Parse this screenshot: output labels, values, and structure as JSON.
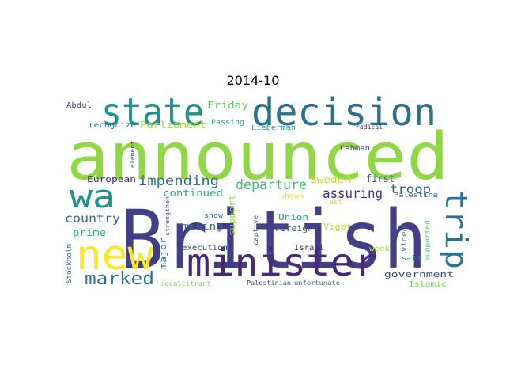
{
  "title": "2014-10",
  "colors": {
    "background": "#ffffff",
    "title": "#000000"
  },
  "words": [
    {
      "text": "announced",
      "color": "#8fd744"
    },
    {
      "text": "British",
      "color": "#433e85"
    },
    {
      "text": "decision",
      "color": "#2c728e"
    },
    {
      "text": "state",
      "color": "#21918c"
    },
    {
      "text": "minister",
      "color": "#482878"
    },
    {
      "text": "new",
      "color": "#fde725"
    },
    {
      "text": "wa",
      "color": "#21908d"
    },
    {
      "text": "trip",
      "color": "#2c728e"
    },
    {
      "text": "marked",
      "color": "#2c728e"
    },
    {
      "text": "departure",
      "color": "#3fbc73"
    },
    {
      "text": "impending",
      "color": "#2c728e"
    },
    {
      "text": "assuring",
      "color": "#472d7b"
    },
    {
      "text": "troop",
      "color": "#355f8d"
    },
    {
      "text": "country",
      "color": "#31688e"
    },
    {
      "text": "continued",
      "color": "#28ae80"
    },
    {
      "text": "Sweden",
      "color": "#c2df23"
    },
    {
      "text": "first",
      "color": "#3b528b"
    },
    {
      "text": "Friday",
      "color": "#5ec962"
    },
    {
      "text": "Parliament",
      "color": "#a0da39"
    },
    {
      "text": "prime",
      "color": "#2fb47c"
    },
    {
      "text": "making",
      "color": "#2c728e"
    },
    {
      "text": "support",
      "color": "#a0da39"
    },
    {
      "text": "major",
      "color": "#31688e"
    },
    {
      "text": "government",
      "color": "#3e4a89"
    },
    {
      "text": "European",
      "color": "#482576"
    },
    {
      "text": "Union",
      "color": "#1f9e89"
    },
    {
      "text": "Foreign",
      "color": "#3b528b"
    },
    {
      "text": "Vigor",
      "color": "#b5de2b"
    },
    {
      "text": "execution",
      "color": "#3e4a89"
    },
    {
      "text": "Israel",
      "color": "#472d7b"
    },
    {
      "text": "Islamic",
      "color": "#7ad151"
    },
    {
      "text": "Abdul",
      "color": "#433e85"
    },
    {
      "text": "recognize",
      "color": "#31688e"
    },
    {
      "text": "Passing",
      "color": "#29af7f"
    },
    {
      "text": "Lieberman",
      "color": "#22a884"
    },
    {
      "text": "Cabman",
      "color": "#414487"
    },
    {
      "text": "Palestine",
      "color": "#31688e"
    },
    {
      "text": "radical",
      "color": "#482173"
    },
    {
      "text": "element",
      "color": "#443983"
    },
    {
      "text": "show",
      "color": "#2e6e8e"
    },
    {
      "text": "shown",
      "color": "#d2e21b"
    },
    {
      "text": "last",
      "color": "#bddf26"
    },
    {
      "text": "captive",
      "color": "#31688e"
    },
    {
      "text": "week",
      "color": "#a8db34"
    },
    {
      "text": "said",
      "color": "#23898e"
    },
    {
      "text": "video",
      "color": "#26828e"
    },
    {
      "text": "supported",
      "color": "#54c568"
    },
    {
      "text": "strengthen",
      "color": "#3b528b"
    },
    {
      "text": "Stockholm",
      "color": "#2c728e"
    },
    {
      "text": "recalcitrant",
      "color": "#7ad151"
    },
    {
      "text": "Palestinian",
      "color": "#433e85"
    },
    {
      "text": "unfortunate",
      "color": "#31688e"
    }
  ]
}
